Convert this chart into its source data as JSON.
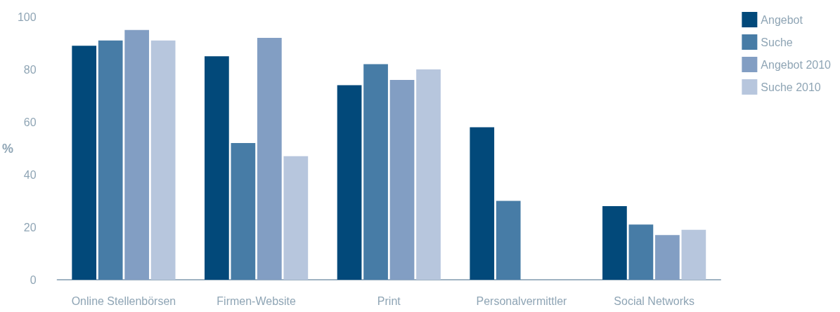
{
  "chart_data": {
    "type": "bar",
    "ylabel": "%",
    "categories": [
      "Online Stellenbörsen",
      "Firmen-Website",
      "Print",
      "Personalvermittler",
      "Social Networks"
    ],
    "series": [
      {
        "name": "Angebot",
        "color": "#02497a",
        "values": [
          89,
          85,
          74,
          58,
          28
        ]
      },
      {
        "name": "Suche",
        "color": "#477ca6",
        "values": [
          91,
          52,
          82,
          30,
          21
        ]
      },
      {
        "name": "Angebot 2010",
        "color": "#829ec3",
        "values": [
          95,
          92,
          76,
          null,
          17
        ]
      },
      {
        "name": "Suche 2010",
        "color": "#b7c6dd",
        "values": [
          91,
          47,
          80,
          null,
          19
        ]
      }
    ],
    "ylim": [
      0,
      100
    ],
    "yticks": [
      0,
      20,
      40,
      60,
      80,
      100
    ],
    "grid": false,
    "legend": "top right"
  }
}
